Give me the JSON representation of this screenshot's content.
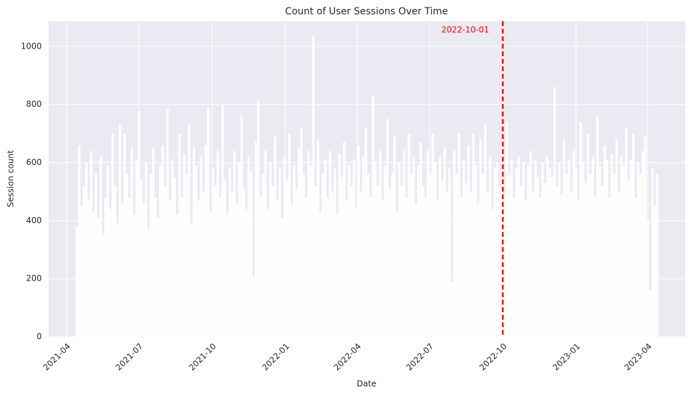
{
  "chart_data": {
    "type": "bar",
    "title": "Count of User Sessions Over Time",
    "x_label": "Date",
    "y_label": "Session count",
    "x": [
      13,
      16,
      19,
      22,
      25,
      28,
      31,
      34,
      37,
      40,
      43,
      46,
      49,
      52,
      55,
      58,
      61,
      64,
      67,
      70,
      73,
      76,
      79,
      82,
      85,
      88,
      91,
      94,
      97,
      100,
      103,
      106,
      109,
      112,
      115,
      118,
      121,
      124,
      127,
      130,
      133,
      136,
      139,
      142,
      145,
      148,
      151,
      154,
      157,
      160,
      163,
      166,
      169,
      172,
      175,
      178,
      181,
      184,
      187,
      190,
      193,
      196,
      199,
      202,
      205,
      208,
      211,
      214,
      217,
      220,
      223,
      226,
      229,
      232,
      235,
      238,
      241,
      244,
      247,
      250,
      253,
      256,
      259,
      262,
      265,
      268,
      271,
      274,
      277,
      280,
      283,
      286,
      289,
      292,
      295,
      298,
      301,
      304,
      307,
      310,
      313,
      316,
      319,
      322,
      325,
      328,
      331,
      334,
      337,
      340,
      343,
      346,
      349,
      352,
      355,
      358,
      361,
      364,
      367,
      370,
      373,
      376,
      379,
      382,
      385,
      388,
      391,
      394,
      397,
      400,
      403,
      406,
      409,
      412,
      415,
      418,
      421,
      424,
      427,
      430,
      433,
      436,
      439,
      442,
      445,
      448,
      451,
      454,
      457,
      460,
      463,
      466,
      469,
      472,
      475,
      478,
      481,
      484,
      487,
      490,
      493,
      496,
      499,
      502,
      505,
      508,
      511,
      514,
      517,
      520,
      523,
      526,
      529,
      532,
      535,
      538,
      541,
      544,
      547,
      550,
      553,
      556,
      559,
      562,
      565,
      568,
      571,
      574,
      577,
      580,
      583,
      586,
      589,
      592,
      595,
      598,
      601,
      604,
      607,
      610,
      613,
      616,
      619,
      622,
      625,
      628,
      631,
      634,
      637,
      640,
      643,
      646,
      649,
      652,
      655,
      658,
      661,
      664,
      667,
      670,
      673,
      676,
      679,
      682,
      685,
      688,
      691,
      694,
      697,
      700,
      703,
      706,
      709,
      712,
      715,
      718,
      721,
      724,
      727,
      730,
      733,
      736,
      739,
      742
    ],
    "values": [
      380,
      660,
      450,
      520,
      600,
      470,
      640,
      430,
      560,
      410,
      620,
      350,
      480,
      590,
      440,
      700,
      520,
      390,
      730,
      460,
      700,
      560,
      480,
      650,
      420,
      610,
      780,
      540,
      460,
      600,
      370,
      560,
      650,
      480,
      410,
      590,
      660,
      520,
      785,
      470,
      610,
      550,
      420,
      700,
      480,
      630,
      560,
      730,
      390,
      650,
      590,
      470,
      620,
      500,
      660,
      790,
      430,
      580,
      520,
      640,
      480,
      800,
      540,
      420,
      580,
      500,
      640,
      460,
      600,
      760,
      510,
      440,
      620,
      570,
      210,
      670,
      815,
      480,
      560,
      640,
      440,
      600,
      520,
      690,
      470,
      580,
      410,
      620,
      540,
      700,
      460,
      590,
      510,
      650,
      720,
      560,
      480,
      640,
      590,
      1035,
      520,
      680,
      430,
      560,
      610,
      480,
      640,
      500,
      580,
      420,
      630,
      550,
      670,
      470,
      590,
      520,
      610,
      440,
      660,
      500,
      620,
      720,
      560,
      480,
      828,
      600,
      520,
      640,
      470,
      590,
      750,
      510,
      560,
      690,
      430,
      600,
      520,
      640,
      480,
      700,
      560,
      620,
      460,
      590,
      670,
      520,
      480,
      640,
      560,
      700,
      600,
      470,
      620,
      540,
      650,
      500,
      580,
      190,
      640,
      560,
      700,
      480,
      610,
      530,
      660,
      500,
      700,
      590,
      460,
      680,
      560,
      730,
      500,
      620,
      440,
      580,
      600,
      520,
      660,
      490,
      740,
      560,
      610,
      480,
      580,
      620,
      520,
      600,
      470,
      590,
      640,
      500,
      610,
      550,
      480,
      600,
      530,
      620,
      580,
      550,
      860,
      520,
      600,
      490,
      680,
      560,
      610,
      500,
      640,
      580,
      470,
      740,
      600,
      530,
      700,
      560,
      620,
      480,
      760,
      590,
      520,
      660,
      610,
      480,
      630,
      560,
      680,
      500,
      620,
      590,
      720,
      540,
      610,
      700,
      480,
      600,
      560,
      640,
      690,
      400,
      160,
      580,
      450,
      560
    ],
    "bar_width": 3,
    "color": "#ffffff",
    "background": "#eaeaf2",
    "grid": true,
    "xlim": [
      -22.4,
      777
    ],
    "ylim": [
      0,
      1087
    ],
    "xticks": [
      {
        "value": 0,
        "label": "2021-04"
      },
      {
        "value": 91,
        "label": "2021-07"
      },
      {
        "value": 183,
        "label": "2021-10"
      },
      {
        "value": 275,
        "label": "2022-01"
      },
      {
        "value": 365,
        "label": "2022-04"
      },
      {
        "value": 456,
        "label": "2022-07"
      },
      {
        "value": 548,
        "label": "2022-10"
      },
      {
        "value": 640,
        "label": "2023-01"
      },
      {
        "value": 730,
        "label": "2023-04"
      }
    ],
    "yticks": [
      0,
      200,
      400,
      600,
      800,
      1000
    ],
    "vline": {
      "x": 548,
      "color": "#ff0000",
      "label": "2022-10-01"
    }
  }
}
